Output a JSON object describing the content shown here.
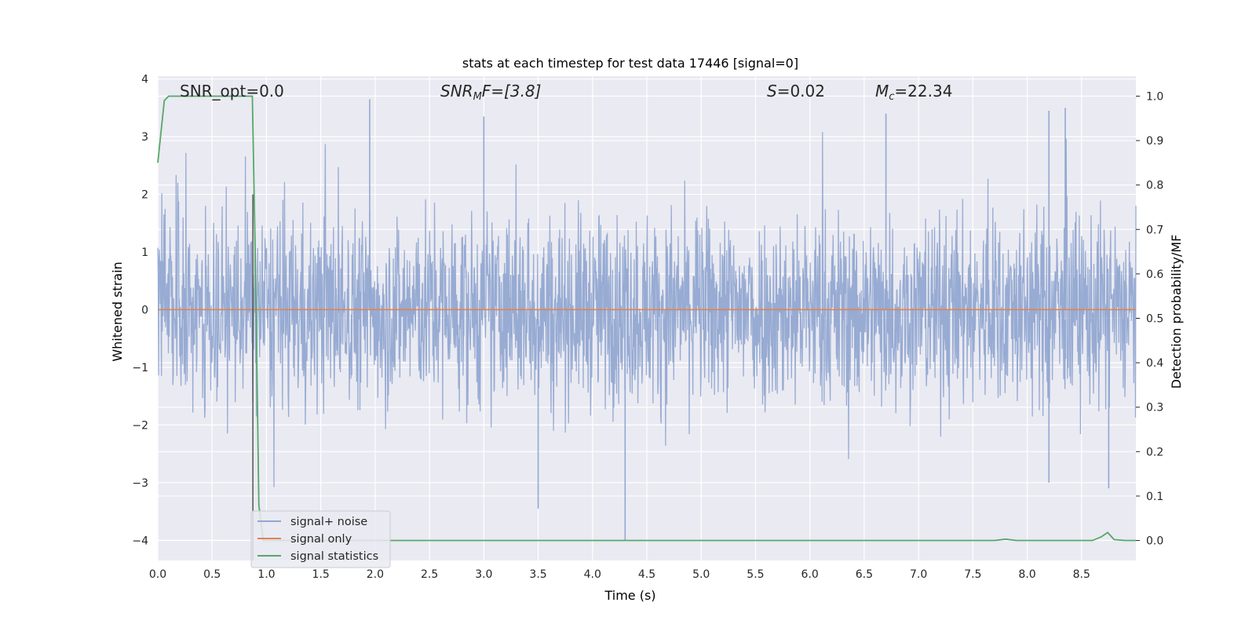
{
  "chart_data": {
    "type": "line",
    "title": "stats at each timestep for test data 17446 [signal=0]",
    "xlabel": "Time (s)",
    "ylabel": "Whitened strain",
    "y2label": "Detection probability/MF",
    "xlim": [
      0.0,
      9.0
    ],
    "ylim": [
      -4.35,
      4.05
    ],
    "y2lim": [
      -0.045,
      1.045
    ],
    "xticks": [
      "0.0",
      "0.5",
      "1.0",
      "1.5",
      "2.0",
      "2.5",
      "3.0",
      "3.5",
      "4.0",
      "4.5",
      "5.0",
      "5.5",
      "6.0",
      "6.5",
      "7.0",
      "7.5",
      "8.0",
      "8.5"
    ],
    "yticks": [
      "4",
      "3",
      "2",
      "1",
      "0",
      "−1",
      "−2",
      "−3",
      "−4"
    ],
    "y2ticks": [
      "1.0",
      "0.9",
      "0.8",
      "0.7",
      "0.6",
      "0.5",
      "0.4",
      "0.3",
      "0.2",
      "0.1",
      "0.0"
    ],
    "grid": true,
    "legend_position": "lower-left",
    "marker_time": 0.875,
    "annotations": {
      "snr_opt": "SNR_opt=0.0",
      "snr_mf_base": "SNR",
      "snr_mf_sub": "M",
      "snr_mf_rest": "F=[3.8]",
      "s_sym": "S",
      "s_val": "=0.02",
      "mc_base": "M",
      "mc_sub": "c",
      "mc_val": "=22.34"
    },
    "series": [
      {
        "name": "signal+ noise",
        "color": "#92a8d1",
        "description_values": "whitened noise, roughly between -2 and 2 with peaks to about 3.7 and -4.0",
        "notable_peaks": [
          {
            "x": 1.95,
            "y": 3.65
          },
          {
            "x": 3.0,
            "y": 3.35
          },
          {
            "x": 8.2,
            "y": 3.45
          },
          {
            "x": 8.35,
            "y": 3.5
          },
          {
            "x": 6.7,
            "y": 3.4
          },
          {
            "x": 4.3,
            "y": -4.0
          },
          {
            "x": 3.5,
            "y": -3.45
          },
          {
            "x": 8.75,
            "y": -3.1
          },
          {
            "x": 8.2,
            "y": -3.0
          }
        ]
      },
      {
        "name": "signal only",
        "color": "#dd8452",
        "x": [
          0.0,
          9.0
        ],
        "y": [
          0.0,
          0.0
        ]
      },
      {
        "name": "signal statistics",
        "color": "#55a868",
        "axis": "right",
        "x": [
          0.0,
          0.06,
          0.1,
          0.2,
          0.4,
          0.6,
          0.8,
          0.87,
          0.9,
          0.93,
          0.97,
          1.0,
          1.5,
          2.0,
          3.0,
          4.0,
          5.0,
          6.0,
          7.0,
          7.7,
          7.8,
          7.9,
          8.0,
          8.5,
          8.6,
          8.68,
          8.74,
          8.8,
          8.9,
          9.0
        ],
        "y": [
          0.85,
          0.99,
          1.0,
          1.0,
          1.0,
          1.0,
          1.0,
          1.0,
          0.6,
          0.08,
          0.0,
          0.0,
          0.0,
          0.0,
          0.0,
          0.0,
          0.0,
          0.0,
          0.0,
          0.0,
          0.003,
          0.0,
          0.0,
          0.0,
          0.0,
          0.008,
          0.018,
          0.002,
          0.0,
          0.0
        ]
      }
    ]
  }
}
